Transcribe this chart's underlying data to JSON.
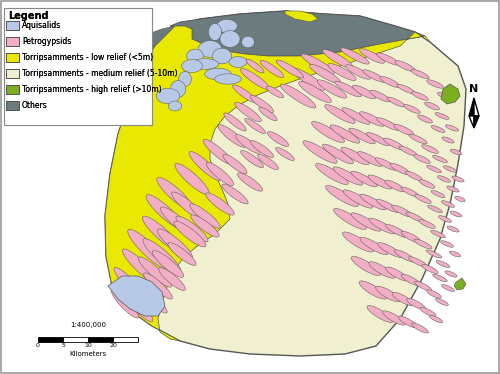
{
  "legend_title": "Legend",
  "legend_items": [
    {
      "label": "Aquisalids",
      "color": "#b8c9e8"
    },
    {
      "label": "Petrogypsids",
      "color": "#f2aec4"
    },
    {
      "label": "Torripsamments - low relief (<5m)",
      "color": "#e8e800"
    },
    {
      "label": "Torripsamments - medium relief (5-10m)",
      "color": "#f0f0d0"
    },
    {
      "label": "Torripsamments - high relief (>10m)",
      "color": "#7ab020"
    },
    {
      "label": "Others",
      "color": "#6b7b7e"
    }
  ],
  "scale_text": "1:400,000",
  "scale_labels": [
    "0",
    "5",
    "10",
    "20"
  ],
  "scale_unit": "Kilometers",
  "north_label": "N",
  "fig_bg": "#ffffff",
  "map_outline_color": "#555555",
  "legend_box_color": "#888888"
}
